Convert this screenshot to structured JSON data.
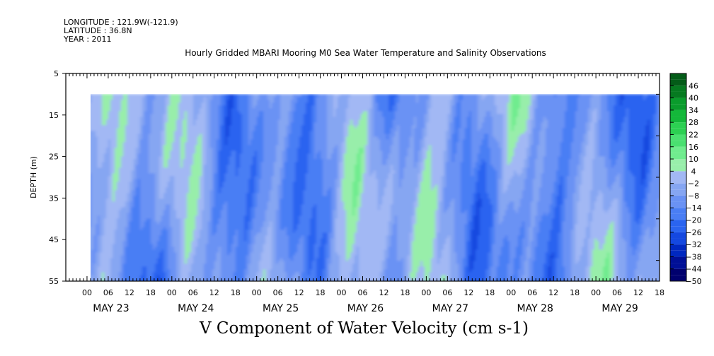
{
  "header": {
    "longitude": "LONGITUDE : 121.9W(-121.9)",
    "latitude": "LATITUDE : 36.8N",
    "year": "YEAR : 2011"
  },
  "chart_data": {
    "type": "heatmap",
    "title": "Hourly Gridded MBARI Mooring M0 Sea Water Temperature and Salinity Observations",
    "xlabel": "V Component of Water Velocity (cm s-1)",
    "ylabel": "DEPTH (m)",
    "y_range": [
      5,
      55
    ],
    "y_reversed": true,
    "y_ticks": [
      5,
      15,
      25,
      35,
      45,
      55
    ],
    "data_depth_range": [
      10,
      55
    ],
    "x_hours_range": [
      -6,
      162
    ],
    "x_tick_labels": [
      "00",
      "06",
      "12",
      "18",
      "00",
      "06",
      "12",
      "18",
      "00",
      "06",
      "12",
      "18",
      "00",
      "06",
      "12",
      "18",
      "00",
      "06",
      "12",
      "18",
      "00",
      "06",
      "12",
      "18",
      "00",
      "06",
      "12",
      "18"
    ],
    "x_day_labels": [
      "MAY 23",
      "MAY 24",
      "MAY 25",
      "MAY 26",
      "MAY 27",
      "MAY 28",
      "MAY 29"
    ],
    "colorbar_labels": [
      46,
      40,
      34,
      28,
      22,
      16,
      10,
      4,
      -2,
      -8,
      -14,
      -20,
      -26,
      -32,
      -38,
      -44,
      -50
    ],
    "colorbar_range": [
      -50,
      52
    ],
    "colorbar_colors": {
      "-50": "#00006e",
      "-44": "#000f96",
      "-38": "#0028c0",
      "-32": "#1448e0",
      "-26": "#2a64f0",
      "-20": "#4a7ef4",
      "-14": "#6a92f4",
      "-8": "#86a6f2",
      "-2": "#a2b8f4",
      "4": "#98eeaa",
      "10": "#70ec8e",
      "16": "#4ae070",
      "22": "#2cd052",
      "28": "#14b83a",
      "34": "#0a9c2c",
      "40": "#067a20",
      "46": "#045c18"
    }
  }
}
